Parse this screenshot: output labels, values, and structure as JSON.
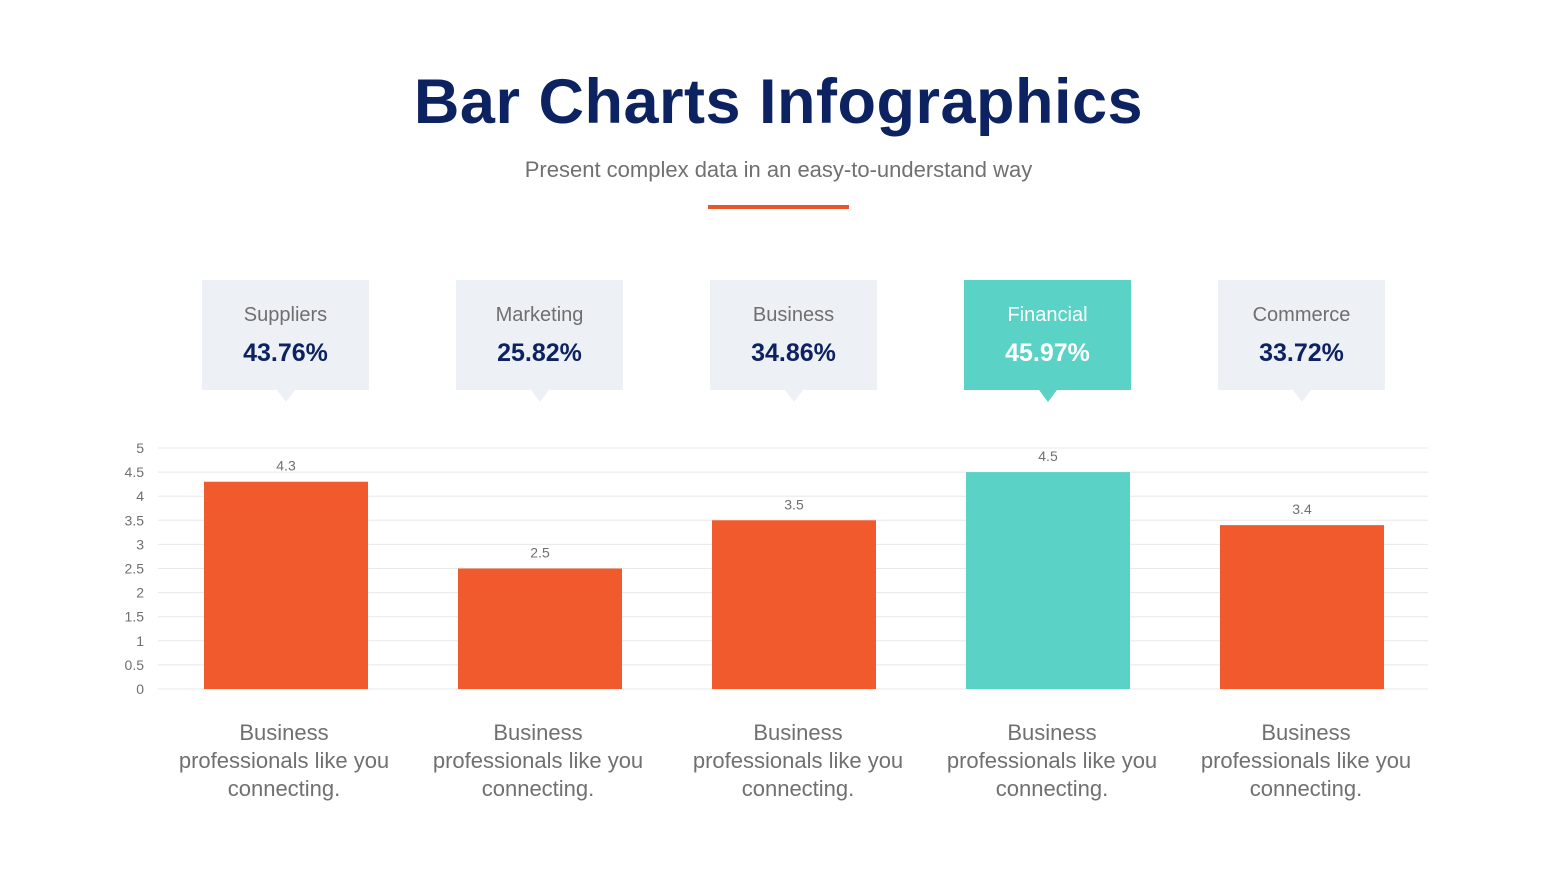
{
  "title": "Bar Charts Infographics",
  "subtitle": "Present complex data in an easy-to-understand way",
  "colors": {
    "title": "#0d2260",
    "accent": "#e6582c",
    "bar": "#f05a2c",
    "highlight": "#5bd2c6",
    "card": "#edf1f6"
  },
  "cards": [
    {
      "name": "Suppliers",
      "percent": "43.76%",
      "highlight": false
    },
    {
      "name": "Marketing",
      "percent": "25.82%",
      "highlight": false
    },
    {
      "name": "Business",
      "percent": "34.86%",
      "highlight": false
    },
    {
      "name": "Financial",
      "percent": "45.97%",
      "highlight": true
    },
    {
      "name": "Commerce",
      "percent": "33.72%",
      "highlight": false
    }
  ],
  "captions": [
    "Business professionals like you connecting.",
    "Business professionals like you connecting.",
    "Business professionals like you connecting.",
    "Business professionals like you connecting.",
    "Business professionals like you connecting."
  ],
  "chart_data": {
    "type": "bar",
    "categories": [
      "Suppliers",
      "Marketing",
      "Business",
      "Financial",
      "Commerce"
    ],
    "values": [
      4.3,
      2.5,
      3.5,
      4.5,
      3.4
    ],
    "data_labels": [
      "4.3",
      "2.5",
      "3.5",
      "4.5",
      "3.4"
    ],
    "highlight_index": 3,
    "ylim": [
      0,
      5
    ],
    "yticks": [
      "0",
      "0.5",
      "1",
      "1.5",
      "2",
      "2.5",
      "3",
      "3.5",
      "4",
      "4.5",
      "5"
    ],
    "grid": true,
    "legend": "none"
  }
}
